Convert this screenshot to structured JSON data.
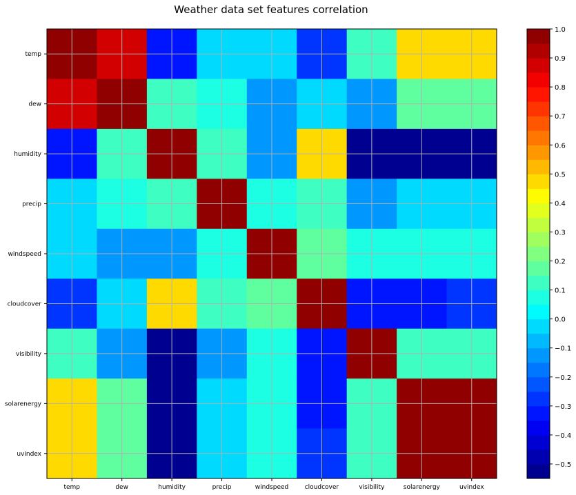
{
  "chart_data": {
    "type": "heatmap",
    "title": "Weather data set features correlation",
    "x_labels": [
      "temp",
      "dew",
      "humidity",
      "precip",
      "windspeed",
      "cloudcover",
      "visibility",
      "solarenergy",
      "uvindex"
    ],
    "y_labels": [
      "temp",
      "dew",
      "humidity",
      "precip",
      "windspeed",
      "cloudcover",
      "visibility",
      "solarenergy",
      "uvindex"
    ],
    "matrix": [
      [
        1.0,
        0.87,
        -0.33,
        -0.01,
        -0.05,
        -0.27,
        0.12,
        0.46,
        0.46
      ],
      [
        0.87,
        1.0,
        0.12,
        0.06,
        -0.12,
        -0.05,
        -0.12,
        0.2,
        0.2
      ],
      [
        -0.33,
        0.12,
        1.0,
        0.11,
        -0.12,
        0.46,
        -0.54,
        -0.54,
        -0.54
      ],
      [
        -0.01,
        0.06,
        0.11,
        1.0,
        0.06,
        0.12,
        -0.12,
        -0.04,
        -0.04
      ],
      [
        -0.05,
        -0.12,
        -0.12,
        0.06,
        1.0,
        0.2,
        0.06,
        0.06,
        0.06
      ],
      [
        -0.27,
        -0.05,
        0.46,
        0.12,
        0.2,
        1.0,
        -0.33,
        -0.33,
        -0.3
      ],
      [
        0.12,
        -0.12,
        -0.54,
        -0.12,
        0.06,
        -0.33,
        1.0,
        0.12,
        0.12
      ],
      [
        0.46,
        0.2,
        -0.54,
        -0.04,
        0.06,
        -0.33,
        0.12,
        1.0,
        1.0
      ],
      [
        0.46,
        0.2,
        -0.54,
        -0.04,
        0.06,
        -0.3,
        0.12,
        1.0,
        1.0
      ]
    ],
    "colormap": "jet",
    "vmin": -0.55,
    "vmax": 1.0,
    "colorbar_ticks": [
      1.0,
      0.9,
      0.8,
      0.7,
      0.6,
      0.5,
      0.4,
      0.3,
      0.2,
      0.1,
      0.0,
      -0.1,
      -0.2,
      -0.3,
      -0.4,
      -0.5
    ],
    "colorbar_tick_labels": [
      "1.0",
      "0.9",
      "0.8",
      "0.7",
      "0.6",
      "0.5",
      "0.4",
      "0.3",
      "0.2",
      "0.1",
      "0.0",
      "−0.1",
      "−0.2",
      "−0.3",
      "−0.4",
      "−0.5"
    ],
    "colorbar_levels": 31,
    "grid": true,
    "grid_color": "#b0b0b0"
  }
}
